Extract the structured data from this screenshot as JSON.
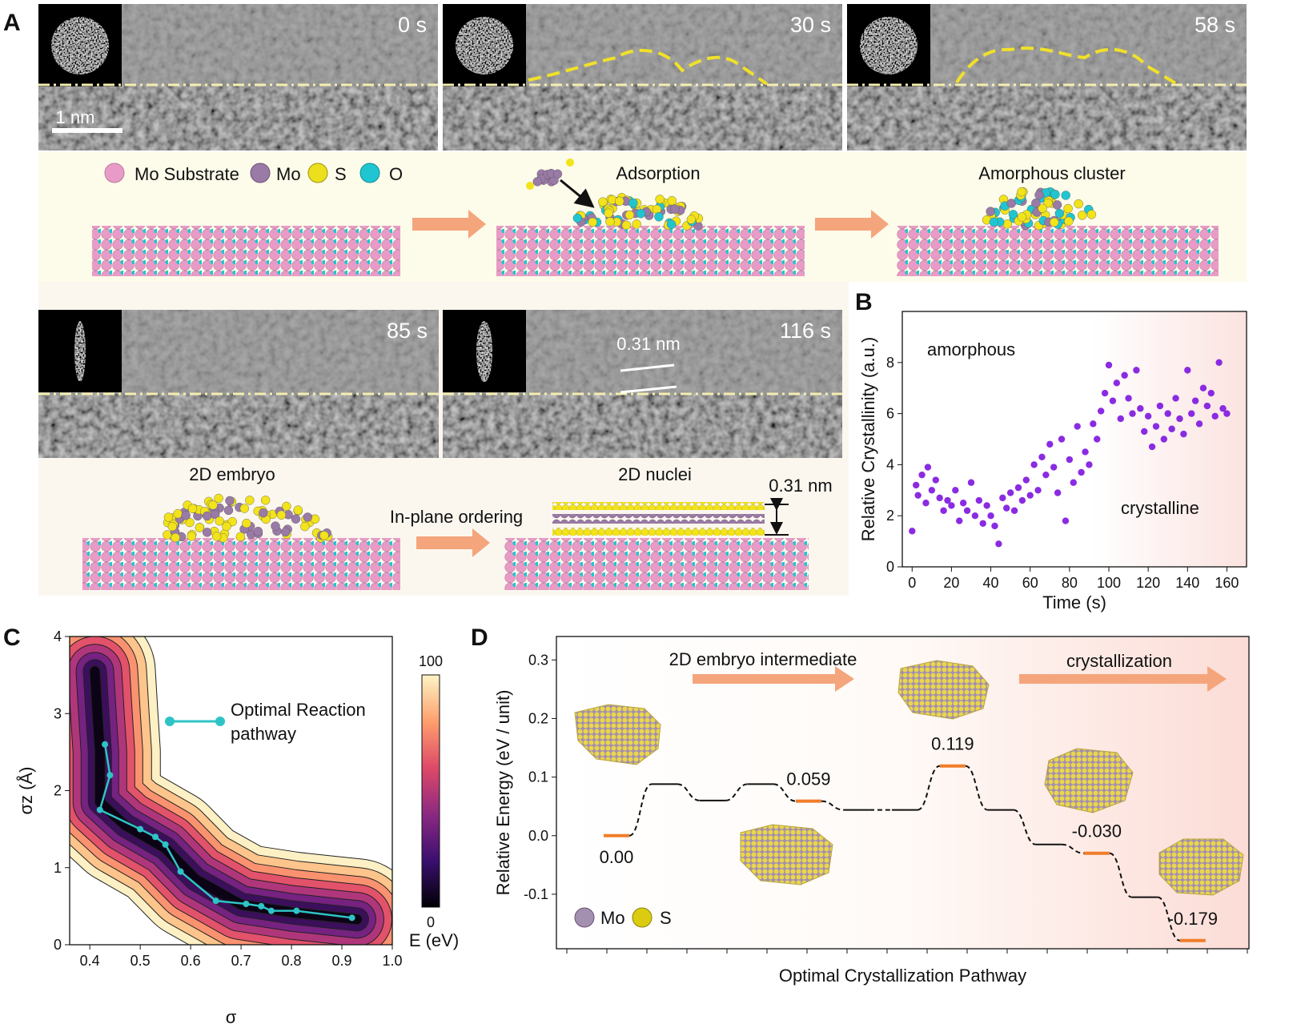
{
  "panel_labels": [
    "A",
    "B",
    "C",
    "D"
  ],
  "panel_a": {
    "frames": [
      "0 s",
      "30 s",
      "58 s",
      "85 s",
      "116 s"
    ],
    "scale_bar": "1 nm",
    "legend": [
      "Mo Substrate",
      "Mo",
      "S",
      "O"
    ],
    "stages": [
      "Adsorption",
      "Amorphous cluster",
      "2D embryo",
      "2D nuclei"
    ],
    "arrow_label": "In-plane ordering",
    "spacing_labels": [
      "0.31 nm",
      "0.31 nm"
    ]
  },
  "chart_data": [
    {
      "type": "scatter",
      "xlabel": "Time (s)",
      "ylabel": "Relative Crystallinity (a.u.)",
      "annotations": [
        "amorphous",
        "crystalline"
      ],
      "color": "#8a2be2",
      "x": [
        0,
        2,
        3,
        5,
        7,
        8,
        10,
        12,
        14,
        16,
        18,
        20,
        22,
        24,
        26,
        28,
        30,
        32,
        34,
        36,
        38,
        40,
        42,
        44,
        46,
        48,
        50,
        52,
        54,
        56,
        58,
        60,
        62,
        64,
        66,
        68,
        70,
        72,
        74,
        76,
        78,
        80,
        82,
        84,
        86,
        88,
        90,
        92,
        94,
        96,
        98,
        100,
        102,
        104,
        106,
        108,
        110,
        112,
        114,
        116,
        118,
        120,
        122,
        124,
        126,
        128,
        130,
        132,
        134,
        136,
        138,
        140,
        142,
        144,
        146,
        148,
        150,
        152,
        154,
        156,
        158,
        160
      ],
      "values": [
        1.4,
        3.2,
        2.8,
        3.6,
        2.5,
        3.9,
        3.0,
        3.4,
        2.7,
        2.2,
        2.6,
        2.4,
        3.0,
        1.8,
        2.5,
        2.2,
        3.3,
        2.0,
        2.6,
        1.7,
        2.4,
        2.0,
        1.6,
        0.9,
        2.7,
        2.3,
        2.9,
        2.2,
        3.1,
        2.6,
        3.4,
        2.8,
        4.0,
        3.0,
        4.3,
        3.6,
        4.8,
        3.9,
        2.9,
        5.0,
        1.8,
        4.2,
        3.3,
        5.5,
        3.7,
        4.5,
        4.0,
        5.6,
        5.0,
        6.1,
        6.8,
        7.9,
        6.5,
        7.2,
        5.8,
        7.5,
        6.6,
        6.0,
        7.7,
        6.2,
        5.3,
        5.9,
        4.7,
        5.5,
        6.3,
        5.0,
        6.0,
        5.4,
        6.6,
        5.8,
        5.2,
        7.7,
        6.0,
        6.5,
        5.6,
        7.0,
        6.3,
        6.8,
        5.9,
        8.0,
        6.2,
        6.0
      ],
      "xlim": [
        -5,
        170
      ],
      "ylim": [
        0,
        10
      ],
      "xticks": [
        0,
        20,
        40,
        60,
        80,
        100,
        120,
        140,
        160
      ],
      "yticks": [
        0,
        2,
        4,
        6,
        8
      ]
    },
    {
      "type": "contour",
      "xlabel": "σ",
      "ylabel": "σz (Å)",
      "series": [
        {
          "name": "Optimal Reaction pathway",
          "color": "#2ec4c6",
          "x": [
            0.43,
            0.44,
            0.42,
            0.5,
            0.53,
            0.55,
            0.58,
            0.65,
            0.71,
            0.74,
            0.76,
            0.81,
            0.92
          ],
          "values": [
            2.6,
            2.2,
            1.75,
            1.5,
            1.4,
            1.3,
            0.95,
            0.57,
            0.53,
            0.5,
            0.44,
            0.44,
            0.35
          ]
        }
      ],
      "colorbar": {
        "label": "E (eV)",
        "ticks": [
          0,
          100
        ]
      },
      "xlim": [
        0.36,
        1.0
      ],
      "ylim": [
        0,
        4
      ],
      "xticks": [
        0.4,
        0.5,
        0.6,
        0.7,
        0.8,
        0.9,
        {
          "value": 1.0,
          "label": "1.0"
        }
      ],
      "yticks": [
        0,
        1,
        2,
        3,
        4
      ]
    },
    {
      "type": "energy_levels",
      "xlabel": "Optimal Crystallization Pathway",
      "ylabel": "Relative Energy (eV / unit)",
      "annotations": [
        "2D embryo intermediate",
        "crystallization"
      ],
      "legend": [
        "Mo",
        "S"
      ],
      "x": [
        0,
        1,
        2,
        3,
        4,
        5,
        6,
        7,
        8,
        9,
        10,
        11,
        12
      ],
      "values": [
        0,
        0.088,
        0.06,
        0.088,
        0.059,
        0.044,
        0.044,
        0.119,
        0.044,
        -0.015,
        -0.03,
        -0.105,
        -0.179
      ],
      "value_labels": [
        "0.00",
        null,
        null,
        null,
        "0.059",
        null,
        null,
        "0.119",
        null,
        null,
        "-0.030",
        null,
        "-0.179"
      ],
      "color": "#f07d2a",
      "xlim": [
        -1.25,
        13.17
      ],
      "ylim": [
        -0.193,
        0.34
      ],
      "yticks": [
        -0.1,
        {
          "value": 0,
          "label": "0.0"
        },
        0.1,
        0.2,
        0.3
      ]
    }
  ]
}
